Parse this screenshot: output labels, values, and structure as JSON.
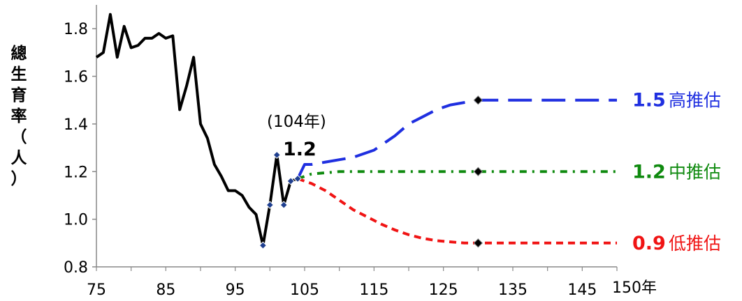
{
  "chart_data": {
    "type": "line",
    "title": "",
    "ylabel": "總生育率（人）",
    "ylabel_chars": [
      "總",
      "生",
      "育",
      "率",
      "（",
      "人",
      "）"
    ],
    "xlabel": "",
    "x_unit_label": "150年",
    "xlim": [
      75,
      150
    ],
    "ylim": [
      0.8,
      1.9
    ],
    "x_ticks": [
      75,
      85,
      95,
      105,
      115,
      125,
      135,
      145
    ],
    "x_tick_labels": [
      "75",
      "85",
      "95",
      "105",
      "115",
      "125",
      "135",
      "145"
    ],
    "y_ticks": [
      0.8,
      1.0,
      1.2,
      1.4,
      1.6,
      1.8
    ],
    "y_tick_labels": [
      "0.8",
      "1.0",
      "1.2",
      "1.4",
      "1.6",
      "1.8"
    ],
    "grid": false,
    "legend": "none",
    "historical": {
      "color": "#000000",
      "x": [
        75,
        76,
        77,
        78,
        79,
        80,
        81,
        82,
        83,
        84,
        85,
        86,
        87,
        88,
        89,
        90,
        91,
        92,
        93,
        94,
        95,
        96,
        97,
        98,
        99,
        100,
        101,
        102,
        103,
        104
      ],
      "y": [
        1.68,
        1.7,
        1.86,
        1.68,
        1.81,
        1.72,
        1.73,
        1.76,
        1.76,
        1.78,
        1.76,
        1.77,
        1.46,
        1.56,
        1.68,
        1.4,
        1.34,
        1.23,
        1.18,
        1.12,
        1.12,
        1.1,
        1.05,
        1.02,
        0.89,
        1.06,
        1.27,
        1.06,
        1.16,
        1.17
      ],
      "marked_x": [
        99,
        100,
        101,
        102,
        103,
        104
      ]
    },
    "series": [
      {
        "name": "高推估",
        "value_label": "1.5",
        "color": "#1f2fe0",
        "dash": "long-dash",
        "x": [
          104,
          105,
          106,
          108,
          110,
          112,
          115,
          118,
          120,
          122,
          124,
          126,
          128,
          130,
          150
        ],
        "y": [
          1.17,
          1.23,
          1.23,
          1.24,
          1.25,
          1.26,
          1.29,
          1.35,
          1.4,
          1.43,
          1.46,
          1.48,
          1.49,
          1.5,
          1.5
        ]
      },
      {
        "name": "中推估",
        "value_label": "1.2",
        "color": "#0f8a0f",
        "dash": "dash-dot",
        "x": [
          104,
          106,
          110,
          115,
          120,
          125,
          130,
          150
        ],
        "y": [
          1.17,
          1.19,
          1.2,
          1.2,
          1.2,
          1.2,
          1.2,
          1.2
        ]
      },
      {
        "name": "低推估",
        "value_label": "0.9",
        "color": "#f01414",
        "dash": "short-dash",
        "x": [
          104,
          106,
          108,
          110,
          112,
          114,
          116,
          118,
          120,
          122,
          124,
          126,
          128,
          130,
          150
        ],
        "y": [
          1.17,
          1.15,
          1.12,
          1.08,
          1.04,
          1.01,
          0.98,
          0.955,
          0.935,
          0.92,
          0.91,
          0.905,
          0.9,
          0.9,
          0.9
        ]
      }
    ],
    "marker_year": 130,
    "annotation": {
      "year_text": "(104年)",
      "value_text": "1.2",
      "x": 101,
      "y": 1.27
    }
  }
}
